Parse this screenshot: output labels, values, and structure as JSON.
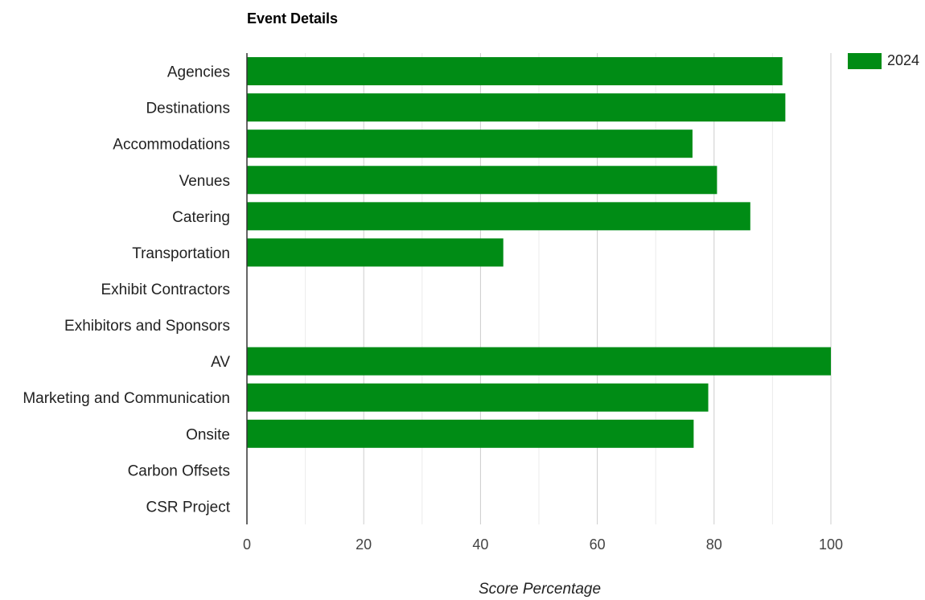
{
  "chart_data": {
    "type": "bar",
    "orientation": "horizontal",
    "title": "Event Details",
    "xlabel": "Score Percentage",
    "ylabel": "",
    "xlim": [
      0,
      100
    ],
    "xticks": [
      0,
      20,
      40,
      60,
      80,
      100
    ],
    "grid": true,
    "legend_position": "top-right",
    "categories": [
      "Agencies",
      "Destinations",
      "Accommodations",
      "Venues",
      "Catering",
      "Transportation",
      "Exhibit Contractors",
      "Exhibitors and Sponsors",
      "AV",
      "Marketing and Communication",
      "Onsite",
      "Carbon Offsets",
      "CSR Project"
    ],
    "series": [
      {
        "name": "2024",
        "color": "#008c15",
        "values": [
          91.7,
          92.2,
          76.3,
          80.5,
          86.2,
          43.9,
          0,
          0,
          100,
          79,
          76.5,
          0,
          0
        ]
      }
    ]
  }
}
